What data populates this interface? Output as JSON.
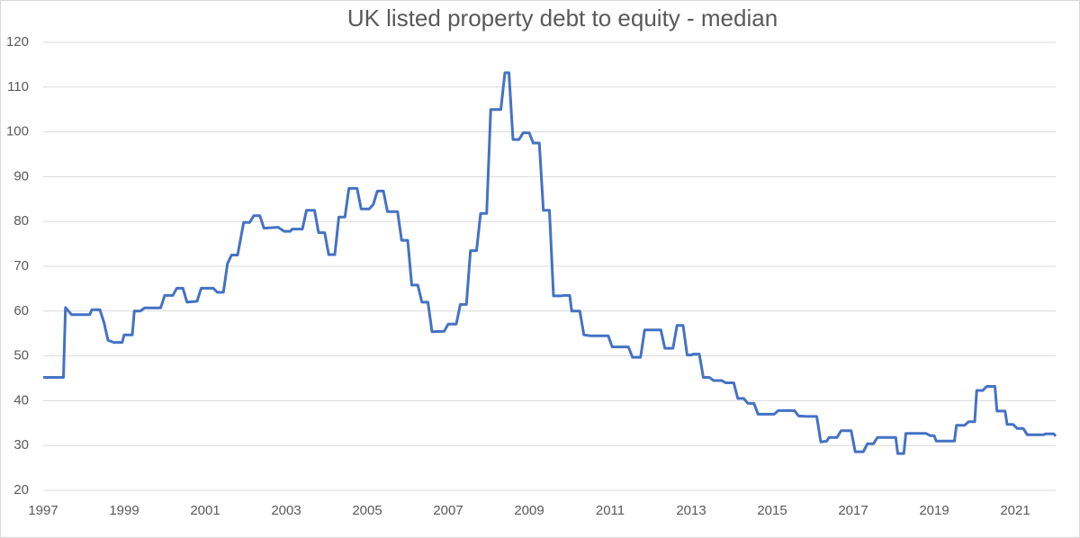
{
  "chart_data": {
    "type": "line",
    "title": "UK listed property debt to equity - median",
    "color": "#4472c4",
    "grid": true,
    "xlim": [
      1997,
      2022
    ],
    "xticks": [
      1997,
      1999,
      2001,
      2003,
      2005,
      2007,
      2009,
      2011,
      2013,
      2015,
      2017,
      2019,
      2021
    ],
    "ylim": [
      20,
      120
    ],
    "yticks": [
      20,
      30,
      40,
      50,
      60,
      70,
      80,
      90,
      100,
      110,
      120
    ],
    "x": [
      1997.0,
      1997.5,
      1997.55,
      1997.7,
      1998.15,
      1998.2,
      1998.4,
      1998.5,
      1998.6,
      1998.75,
      1998.95,
      1999.0,
      1999.2,
      1999.25,
      1999.4,
      1999.5,
      1999.9,
      2000.0,
      2000.2,
      2000.3,
      2000.45,
      2000.55,
      2000.8,
      2000.9,
      2001.2,
      2001.3,
      2001.45,
      2001.55,
      2001.65,
      2001.8,
      2001.95,
      2002.1,
      2002.2,
      2002.35,
      2002.45,
      2002.8,
      2002.95,
      2003.1,
      2003.15,
      2003.4,
      2003.5,
      2003.7,
      2003.8,
      2003.95,
      2004.05,
      2004.2,
      2004.3,
      2004.45,
      2004.55,
      2004.75,
      2004.85,
      2005.05,
      2005.15,
      2005.25,
      2005.4,
      2005.5,
      2005.75,
      2005.85,
      2006.0,
      2006.1,
      2006.25,
      2006.35,
      2006.5,
      2006.6,
      2006.9,
      2007.0,
      2007.2,
      2007.3,
      2007.45,
      2007.55,
      2007.7,
      2007.8,
      2007.95,
      2008.05,
      2008.3,
      2008.4,
      2008.5,
      2008.6,
      2008.75,
      2008.85,
      2009.0,
      2009.1,
      2009.25,
      2009.35,
      2009.5,
      2009.6,
      2009.8,
      2009.85,
      2010.0,
      2010.05,
      2010.25,
      2010.35,
      2010.5,
      2010.95,
      2011.05,
      2011.45,
      2011.55,
      2011.75,
      2011.85,
      2012.25,
      2012.35,
      2012.55,
      2012.65,
      2012.8,
      2012.9,
      2013.0,
      2013.05,
      2013.2,
      2013.3,
      2013.45,
      2013.55,
      2013.75,
      2013.85,
      2014.05,
      2014.15,
      2014.3,
      2014.4,
      2014.55,
      2014.65,
      2015.05,
      2015.15,
      2015.55,
      2015.65,
      2015.85,
      2016.1,
      2016.2,
      2016.35,
      2016.4,
      2016.6,
      2016.7,
      2016.95,
      2017.05,
      2017.25,
      2017.35,
      2017.5,
      2017.6,
      2018.05,
      2018.1,
      2018.25,
      2018.3,
      2018.8,
      2018.9,
      2019.0,
      2019.05,
      2019.5,
      2019.55,
      2019.75,
      2019.85,
      2020.0,
      2020.05,
      2020.2,
      2020.3,
      2020.5,
      2020.55,
      2020.75,
      2020.8,
      2020.95,
      2021.05,
      2021.2,
      2021.3,
      2021.7,
      2021.75,
      2021.95,
      2022.0
    ],
    "values": [
      45.2,
      45.2,
      60.8,
      59.2,
      59.2,
      60.3,
      60.3,
      57.5,
      53.5,
      53.0,
      53.0,
      54.7,
      54.7,
      60.0,
      60.0,
      60.7,
      60.7,
      63.5,
      63.5,
      65.1,
      65.1,
      62.0,
      62.2,
      65.1,
      65.1,
      64.2,
      64.2,
      70.6,
      72.5,
      72.5,
      79.8,
      79.8,
      81.3,
      81.3,
      78.5,
      78.7,
      77.8,
      77.8,
      78.3,
      78.3,
      82.5,
      82.5,
      77.5,
      77.5,
      72.6,
      72.6,
      81.0,
      81.0,
      87.4,
      87.4,
      82.8,
      82.8,
      83.8,
      86.8,
      86.8,
      82.2,
      82.2,
      75.8,
      75.8,
      65.8,
      65.8,
      62.0,
      62.0,
      55.4,
      55.5,
      57.1,
      57.1,
      61.5,
      61.5,
      73.5,
      73.5,
      81.8,
      81.8,
      105.0,
      105.0,
      113.2,
      113.2,
      98.3,
      98.3,
      99.8,
      99.8,
      97.5,
      97.5,
      82.5,
      82.5,
      63.4,
      63.4,
      63.5,
      63.5,
      60.0,
      60.0,
      54.7,
      54.5,
      54.5,
      52.0,
      52.0,
      49.7,
      49.7,
      55.8,
      55.8,
      51.7,
      51.7,
      56.8,
      56.8,
      50.2,
      50.2,
      50.4,
      50.4,
      45.2,
      45.2,
      44.5,
      44.5,
      44.0,
      44.0,
      40.5,
      40.5,
      39.4,
      39.4,
      37.0,
      37.0,
      37.8,
      37.8,
      36.6,
      36.5,
      36.5,
      30.8,
      31.0,
      31.8,
      31.8,
      33.3,
      33.3,
      28.6,
      28.6,
      30.4,
      30.4,
      31.8,
      31.8,
      28.2,
      28.2,
      32.7,
      32.7,
      32.2,
      32.2,
      31.0,
      31.0,
      34.5,
      34.5,
      35.3,
      35.3,
      42.3,
      42.3,
      43.2,
      43.2,
      37.7,
      37.7,
      34.7,
      34.7,
      33.8,
      33.8,
      32.4,
      32.4,
      32.6,
      32.6,
      32.1
    ]
  }
}
